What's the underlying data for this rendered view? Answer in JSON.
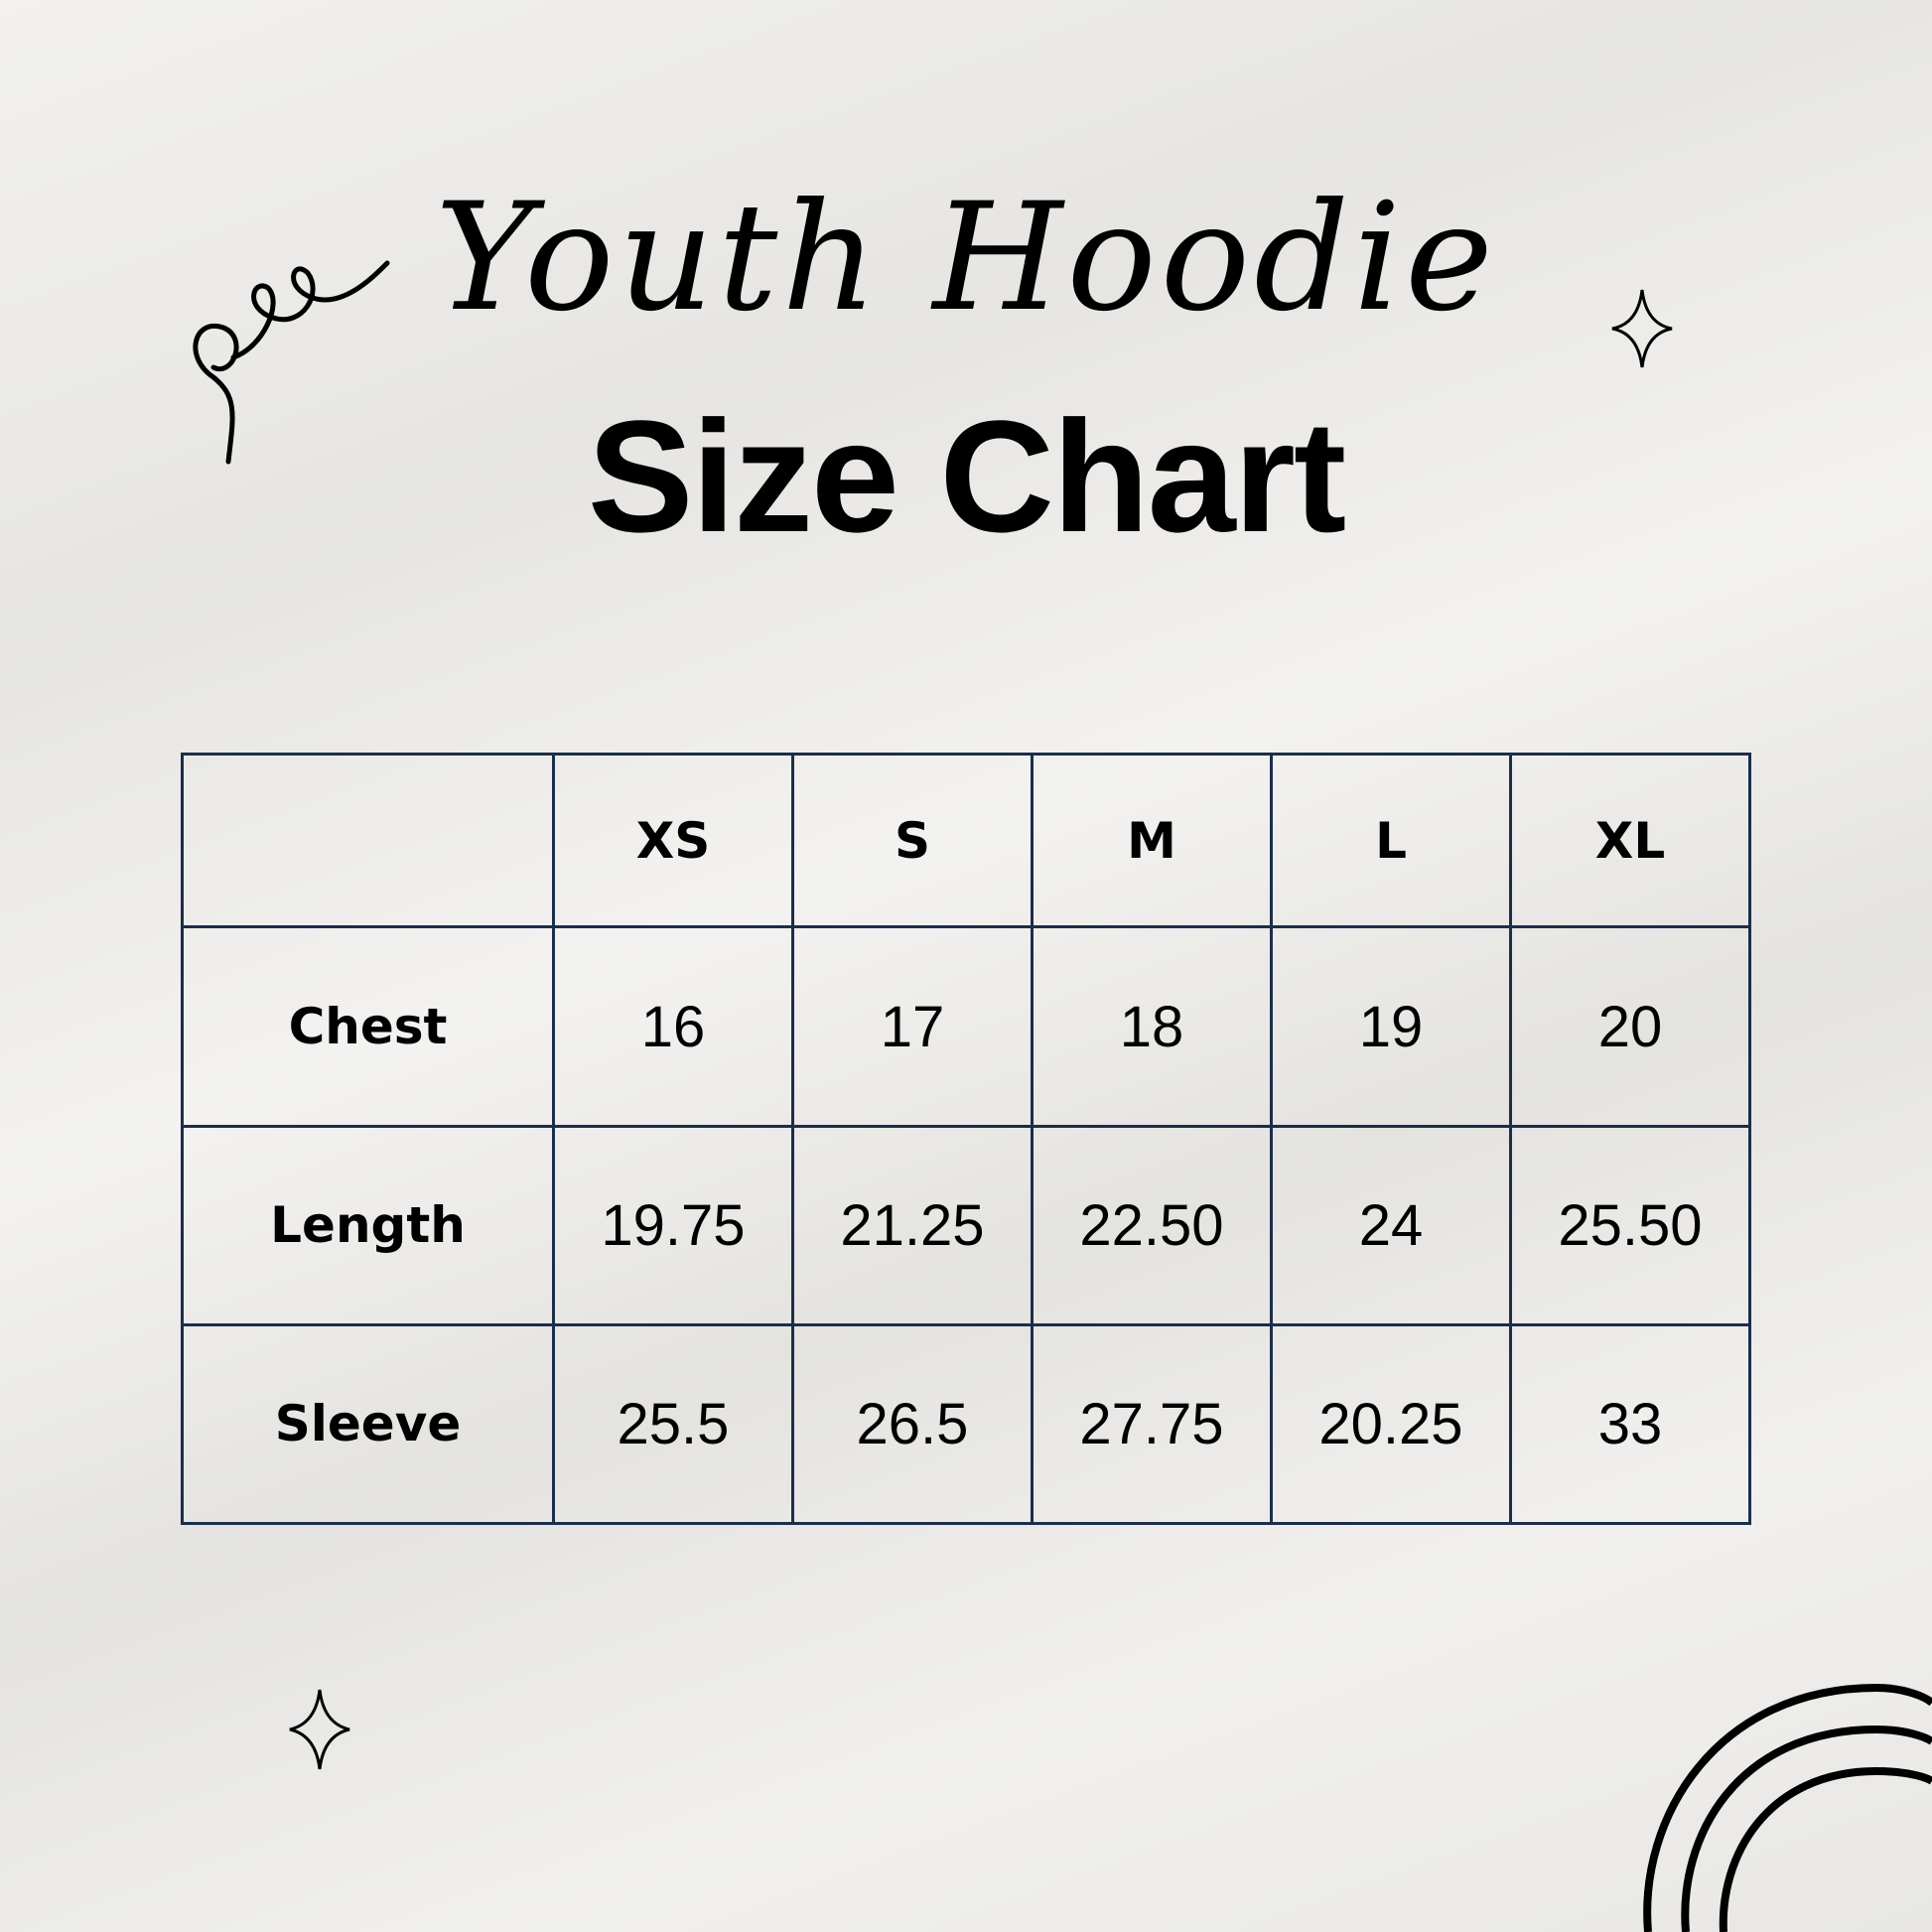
{
  "header": {
    "script_title": "Youth Hoodie",
    "title": "Size Chart"
  },
  "table": {
    "columns": [
      "",
      "XS",
      "S",
      "M",
      "L",
      "XL"
    ],
    "rows": [
      {
        "label": "Chest",
        "values": [
          "16",
          "17",
          "18",
          "19",
          "20"
        ]
      },
      {
        "label": "Length",
        "values": [
          "19.75",
          "21.25",
          "22.50",
          "24",
          "25.50"
        ]
      },
      {
        "label": "Sleeve",
        "values": [
          "25.5",
          "26.5",
          "27.75",
          "20.25",
          "33"
        ]
      }
    ],
    "border_color": "#1b2e4b"
  },
  "decorations": [
    "swirl-icon",
    "sparkle-icon",
    "sparkle-icon",
    "rainbow-arcs-icon"
  ]
}
